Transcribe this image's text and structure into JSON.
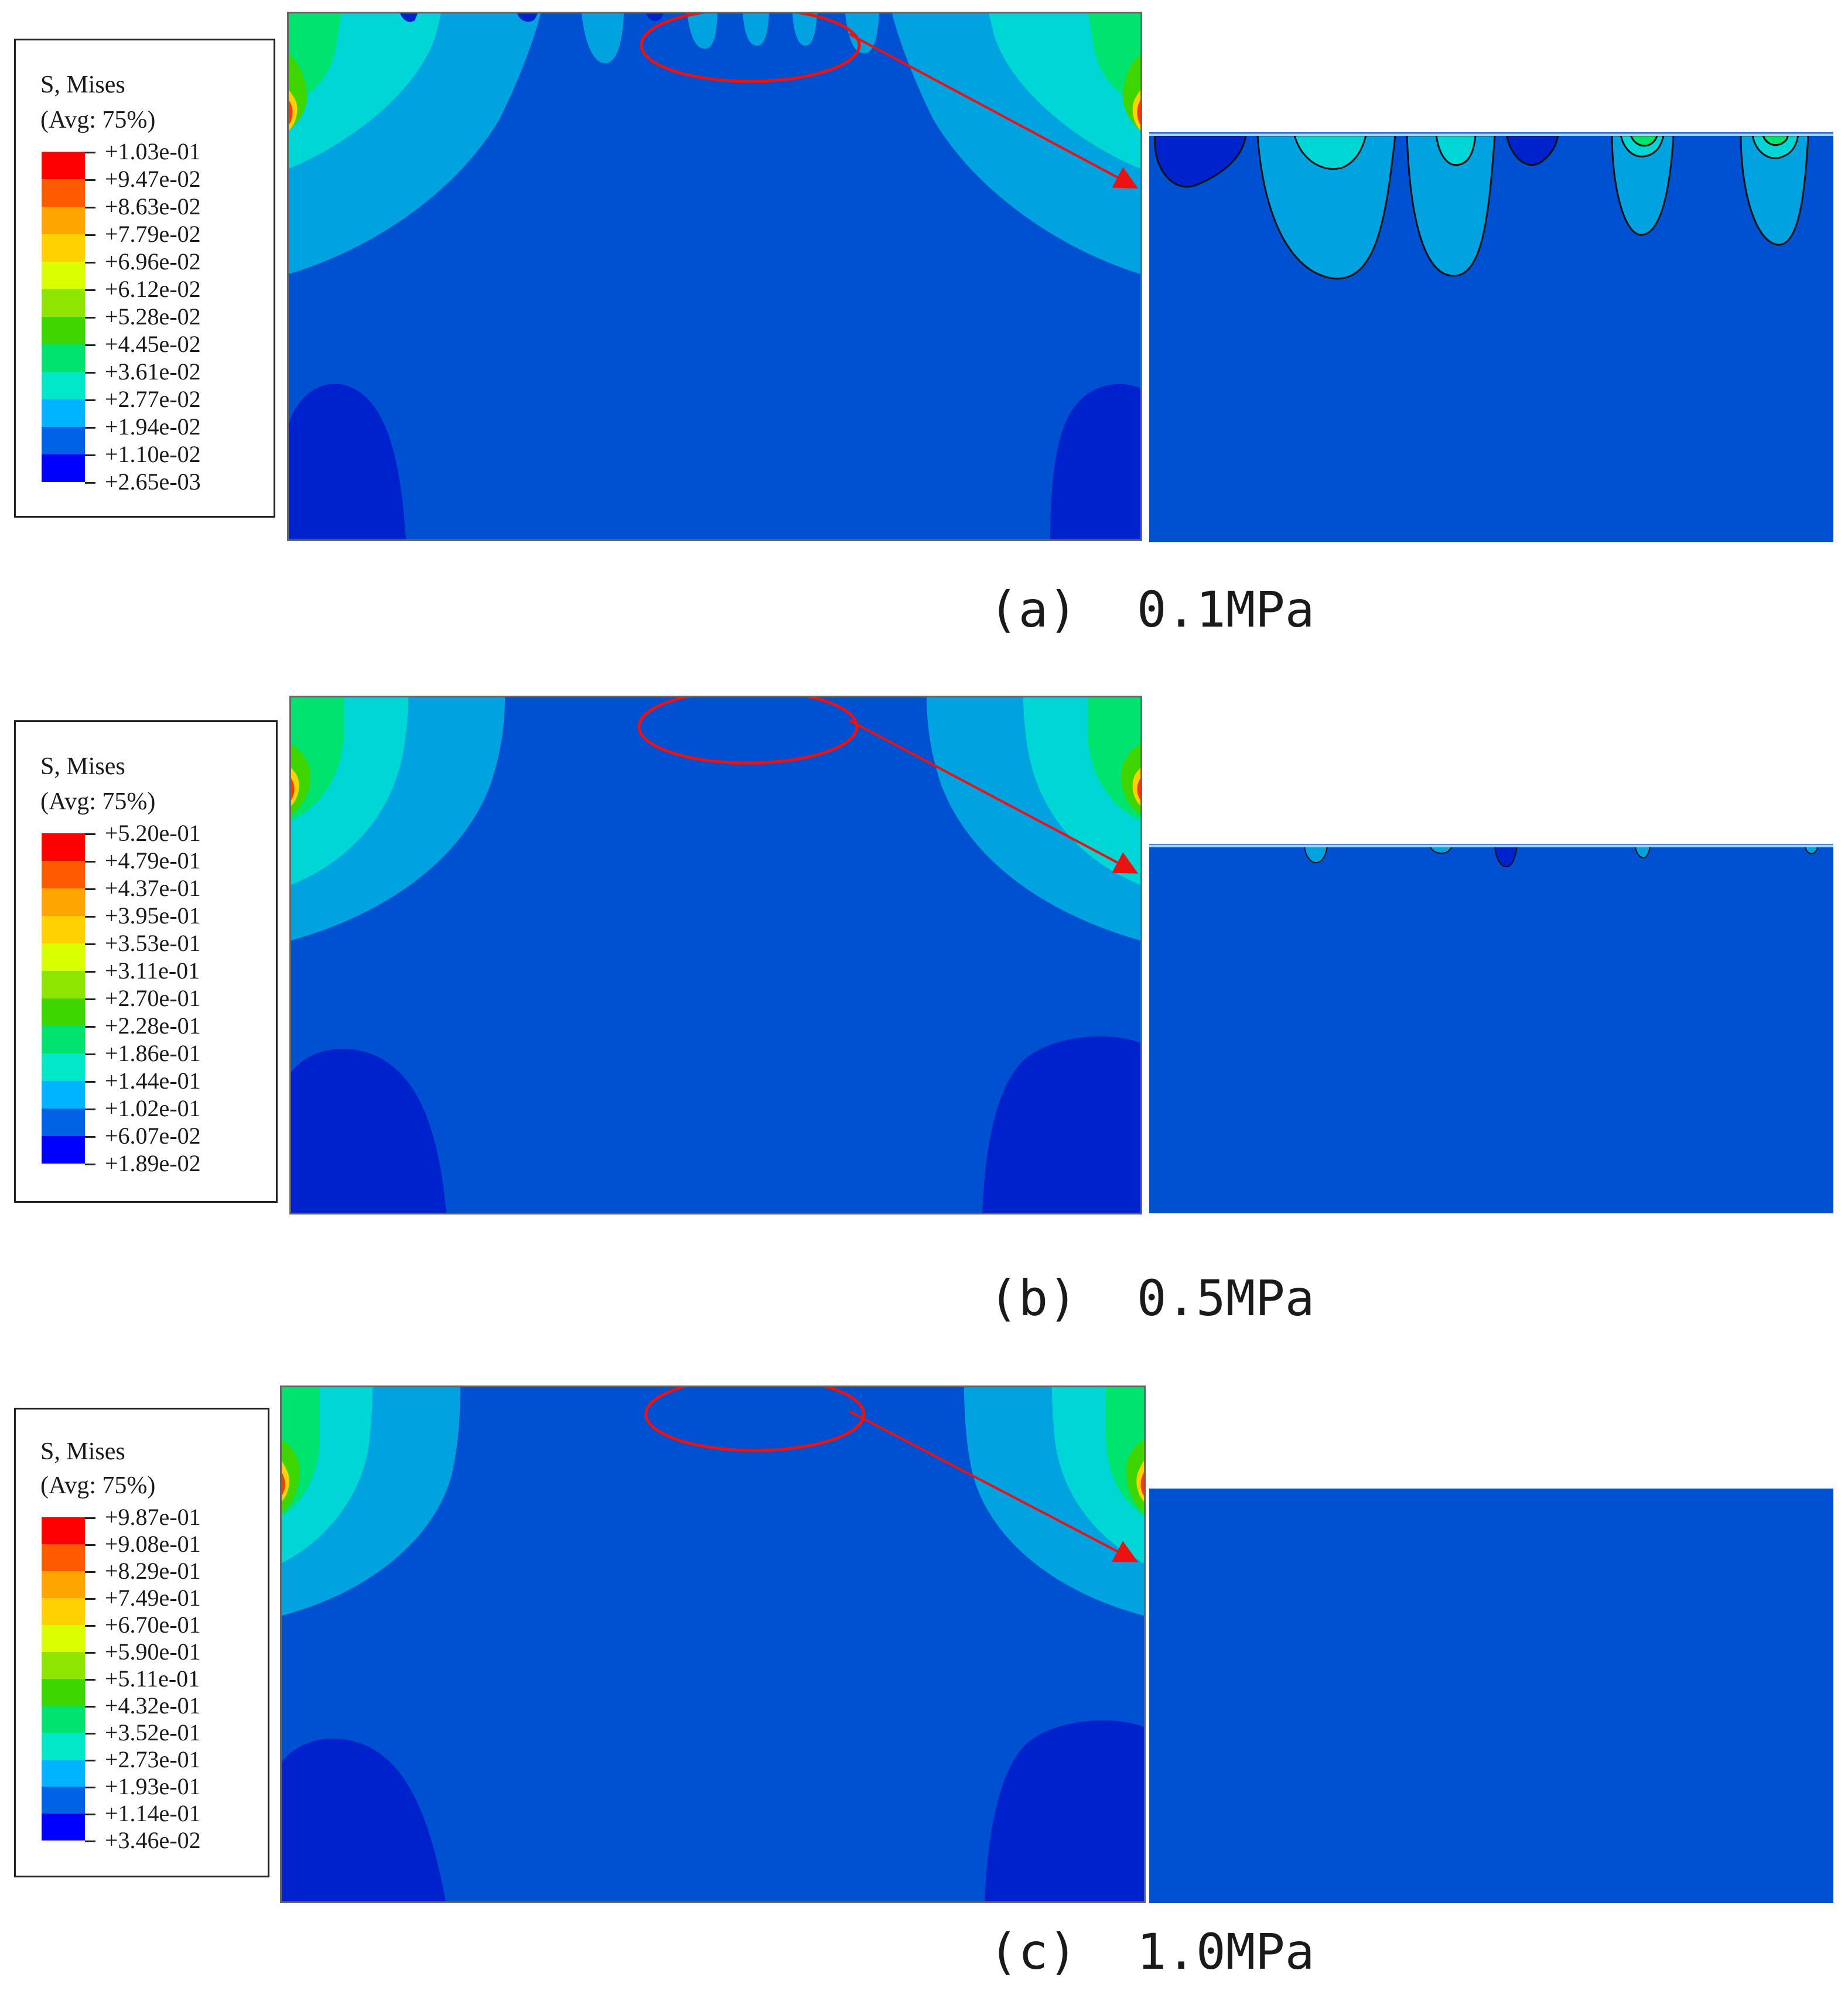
{
  "colors": {
    "base": "#0050d2",
    "dark": "#0022cc",
    "light": "#00a2e0",
    "cyan": "#00d6d6",
    "accent": "#ee1111",
    "legend_scale": [
      "#ff0000",
      "#ff5a00",
      "#ffa500",
      "#ffd100",
      "#d9ff00",
      "#8ee600",
      "#3fd600",
      "#00e36e",
      "#00e8c7",
      "#00b4ff",
      "#0063e6",
      "#0000ff"
    ]
  },
  "panels": [
    {
      "id": "a",
      "caption": "(a)  0.1MPa",
      "legend": {
        "title": "S, Mises",
        "subtitle": "(Avg: 75%)",
        "values": [
          "+1.03e-01",
          "+9.47e-02",
          "+8.63e-02",
          "+7.79e-02",
          "+6.96e-02",
          "+6.12e-02",
          "+5.28e-02",
          "+4.45e-02",
          "+3.61e-02",
          "+2.77e-02",
          "+1.94e-02",
          "+1.10e-02",
          "+2.65e-03"
        ]
      }
    },
    {
      "id": "b",
      "caption": "(b)  0.5MPa",
      "legend": {
        "title": "S, Mises",
        "subtitle": "(Avg: 75%)",
        "values": [
          "+5.20e-01",
          "+4.79e-01",
          "+4.37e-01",
          "+3.95e-01",
          "+3.53e-01",
          "+3.11e-01",
          "+2.70e-01",
          "+2.28e-01",
          "+1.86e-01",
          "+1.44e-01",
          "+1.02e-01",
          "+6.07e-02",
          "+1.89e-02"
        ]
      }
    },
    {
      "id": "c",
      "caption": "(c)  1.0MPa",
      "legend": {
        "title": "S, Mises",
        "subtitle": "(Avg: 75%)",
        "values": [
          "+9.87e-01",
          "+9.08e-01",
          "+8.29e-01",
          "+7.49e-01",
          "+6.70e-01",
          "+5.90e-01",
          "+5.11e-01",
          "+4.32e-01",
          "+3.52e-01",
          "+2.73e-01",
          "+1.93e-01",
          "+1.14e-01",
          "+3.46e-02"
        ]
      }
    }
  ]
}
